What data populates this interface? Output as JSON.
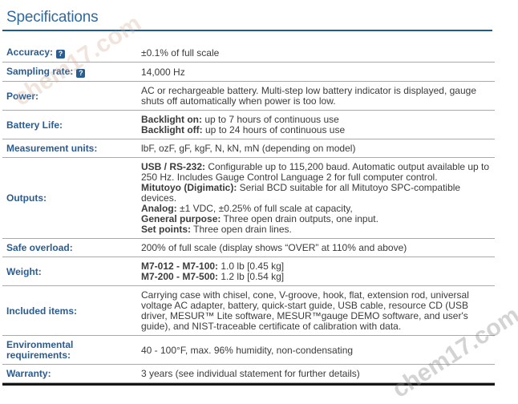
{
  "page": {
    "title": "Specifications"
  },
  "watermark": {
    "text": "chem17.com"
  },
  "icons": {
    "help_glyph": "?"
  },
  "table": {
    "rows": [
      {
        "label": "Accuracy:",
        "has_help": true,
        "lines": [
          {
            "b": "",
            "t": "±0.1% of full scale"
          }
        ]
      },
      {
        "label": "Sampling rate:",
        "has_help": true,
        "lines": [
          {
            "b": "",
            "t": "14,000 Hz"
          }
        ]
      },
      {
        "label": "Power:",
        "lines": [
          {
            "b": "",
            "t": "AC or rechargeable battery. Multi-step low battery indicator is displayed, gauge"
          },
          {
            "b": "",
            "t": "shuts off automatically when power is too low."
          }
        ]
      },
      {
        "label": "Battery Life:",
        "lines": [
          {
            "b": "Backlight on:",
            "t": " up to 7 hours of continuous use"
          },
          {
            "b": "Backlight off:",
            "t": " up to 24 hours of continuous use"
          }
        ]
      },
      {
        "label": "Measurement units:",
        "lines": [
          {
            "b": "",
            "t": "lbF, ozF, gF, kgF, N, kN, mN (depending on model)"
          }
        ]
      },
      {
        "label": "Outputs:",
        "lines": [
          {
            "b": "USB / RS-232:",
            "t": " Configurable up to 115,200 baud. Automatic output available up to"
          },
          {
            "b": "",
            "t": "250 Hz. Includes Gauge Control Language 2 for full computer control."
          },
          {
            "b": "Mitutoyo (Digimatic):",
            "t": " Serial BCD suitable for all Mitutoyo SPC-compatible"
          },
          {
            "b": "",
            "t": "devices."
          },
          {
            "b": "Analog:",
            "t": " ±1 VDC, ±0.25% of full scale at capacity,"
          },
          {
            "b": "General purpose:",
            "t": " Three open drain outputs, one input."
          },
          {
            "b": "Set points:",
            "t": " Three open drain lines."
          }
        ]
      },
      {
        "label": "Safe overload:",
        "lines": [
          {
            "b": "",
            "t": "200% of full scale (display shows “OVER” at 110% and above)"
          }
        ]
      },
      {
        "label": "Weight:",
        "lines": [
          {
            "b": "M7-012 - M7-100:",
            "t": " 1.0 lb [0.45 kg]"
          },
          {
            "b": "M7-200 - M7-500:",
            "t": " 1.2 lb [0.54 kg]"
          }
        ]
      },
      {
        "label": "Included items:",
        "lines": [
          {
            "b": "",
            "t": "Carrying case with chisel, cone, V-groove, hook, flat, extension rod, universal"
          },
          {
            "b": "",
            "t": "voltage AC adapter, battery, quick-start guide, USB cable, resource CD (USB"
          },
          {
            "b": "",
            "t": "driver, MESUR™ Lite software, MESUR™gauge DEMO software, and user's"
          },
          {
            "b": "",
            "t": "guide), and NIST-traceable certificate of calibration with data."
          }
        ]
      },
      {
        "label": "Environmental requirements:",
        "lines": [
          {
            "b": "",
            "t": "40 - 100°F, max. 96% humidity, non-condensating"
          }
        ]
      },
      {
        "label": "Warranty:",
        "lines": [
          {
            "b": "",
            "t": "3 years (see individual statement for further details)"
          }
        ]
      }
    ]
  },
  "colors": {
    "title": "#2f6a9f",
    "title_rule": "#1e5b8f",
    "label": "#2a5c92",
    "value_text": "#3b3b3b",
    "separator": "#a9a9a9",
    "bottom_rule": "#161616",
    "help_icon_bg": "#2b5e90"
  }
}
